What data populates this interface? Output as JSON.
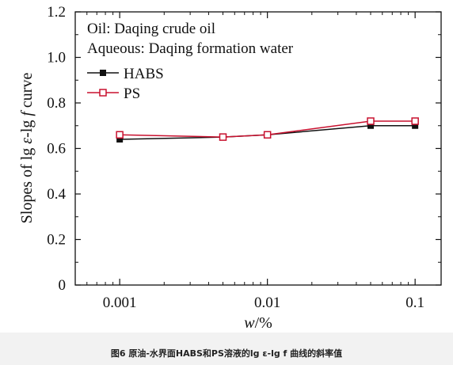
{
  "chart_data": {
    "type": "line",
    "x_scale": "log",
    "x": [
      0.001,
      0.005,
      0.01,
      0.05,
      0.1
    ],
    "series": [
      {
        "name": "HABS",
        "values": [
          0.64,
          0.65,
          0.66,
          0.7,
          0.7
        ],
        "color": "#111111",
        "marker": "filled-square"
      },
      {
        "name": "PS",
        "values": [
          0.66,
          0.65,
          0.66,
          0.72,
          0.72
        ],
        "color": "#c8102e",
        "marker": "open-square"
      }
    ],
    "xlim": [
      0.0005,
      0.15
    ],
    "ylim": [
      0,
      1.2
    ],
    "x_ticks": [
      {
        "value": 0.001,
        "label": "0.001"
      },
      {
        "value": 0.01,
        "label": "0.01"
      },
      {
        "value": 0.1,
        "label": "0.1"
      }
    ],
    "y_ticks": [
      {
        "value": 0,
        "label": "0"
      },
      {
        "value": 0.2,
        "label": "0.2"
      },
      {
        "value": 0.4,
        "label": "0.4"
      },
      {
        "value": 0.6,
        "label": "0.6"
      },
      {
        "value": 0.8,
        "label": "0.8"
      },
      {
        "value": 1.0,
        "label": "1.0"
      },
      {
        "value": 1.2,
        "label": "1.2"
      }
    ],
    "xlabel_main": "w",
    "xlabel_unit": "/%",
    "ylabel": {
      "p1": "Slopes of lg ",
      "p2": "ε",
      "p3": "-lg ",
      "p4": "f",
      "p5": " curve"
    },
    "annotations": [
      "Oil: Daqing crude oil",
      "Aqueous: Daqing formation water"
    ],
    "legend_position": "top-left",
    "grid": false
  },
  "caption": "图6  原油-水界面HABS和PS溶液的lg ε-lg f 曲线的斜率值"
}
